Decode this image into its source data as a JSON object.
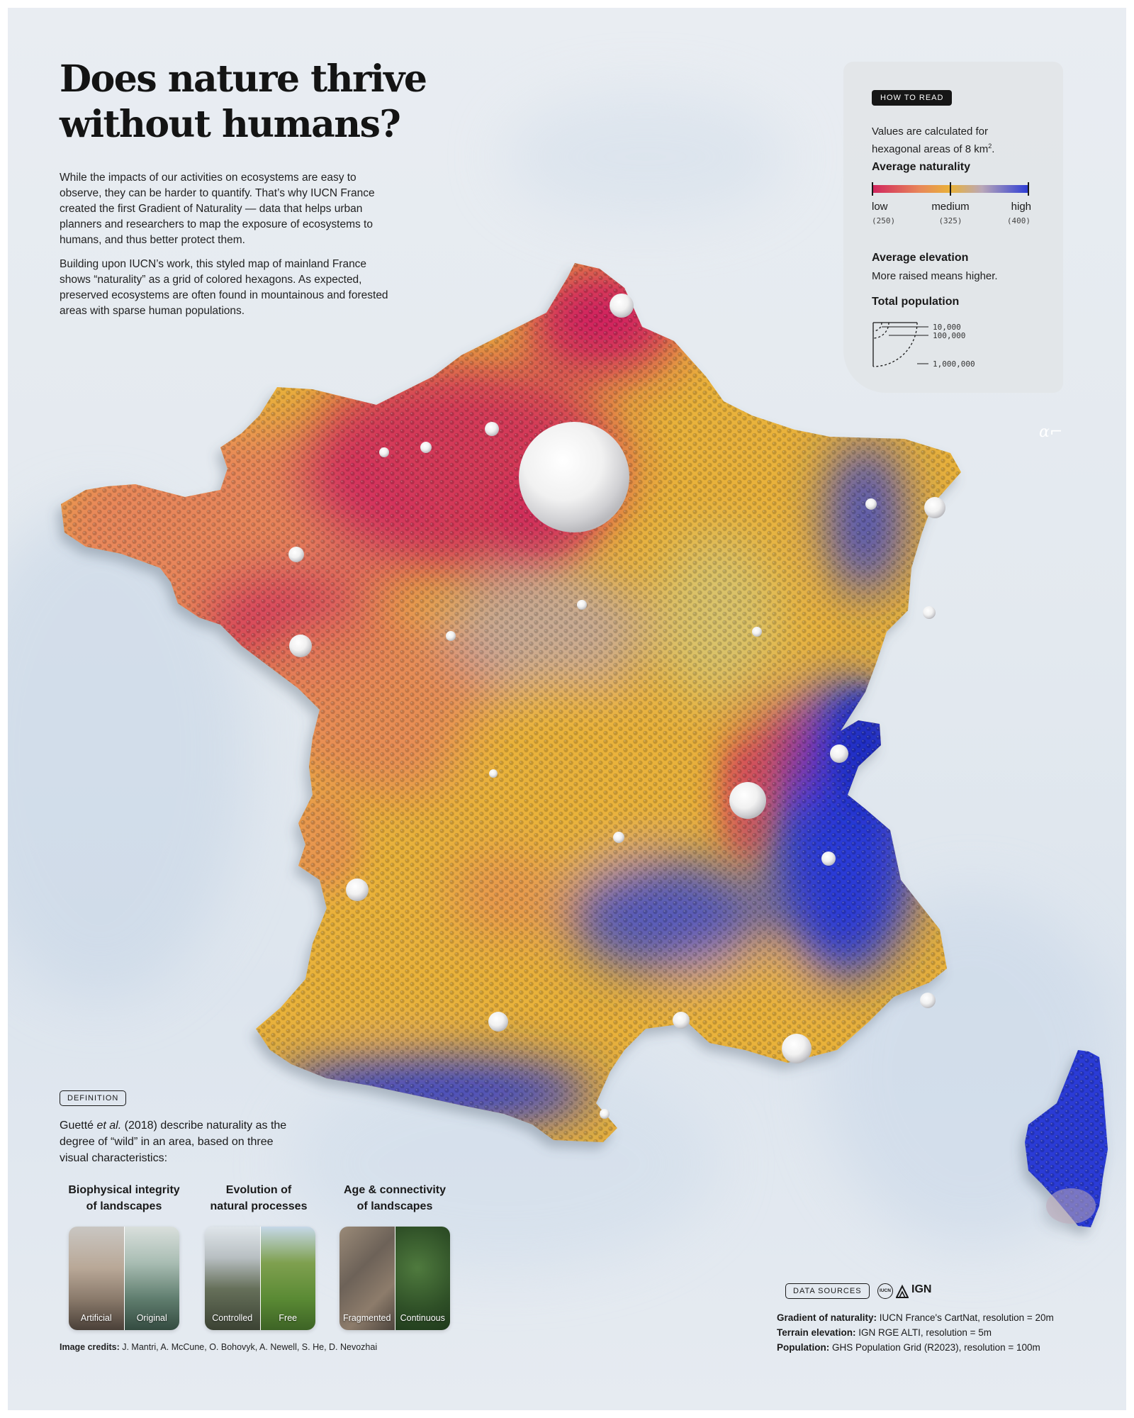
{
  "header": {
    "title": "Does nature thrive without humans?",
    "intro_p1": "While the impacts of our activities on ecosystems are easy to observe, they can be harder to quantify. That’s why IUCN France created the first Gradient of Naturality — data that helps urban planners and researchers to map the exposure of ecosystems to humans, and thus better protect them.",
    "intro_p2": "Building upon IUCN’s work, this styled map of mainland France shows “naturality” as a grid of colored hexagons. As expected, preserved ecosystems are often found in mountainous and forested areas with sparse human populations."
  },
  "how_to_read": {
    "badge": "HOW TO READ",
    "hex_note_prefix": "Values are calculated for",
    "hex_note": "hexagonal areas of 8 km",
    "hex_note_sup": "2",
    "hex_note_end": ".",
    "naturality_title": "Average naturality",
    "low": "low",
    "medium": "medium",
    "high": "high",
    "low_value": "(250)",
    "medium_value": "(325)",
    "high_value": "(400)",
    "elevation_title": "Average elevation",
    "elevation_text": "More raised means higher.",
    "population_title": "Total population",
    "pop_10k": "10,000",
    "pop_100k": "100,000",
    "pop_1m": "1,000,000"
  },
  "definition": {
    "badge": "DEFINITION",
    "text_a": "Guetté ",
    "text_em": "et al.",
    "text_b": " (2018) describe naturality as the degree of “wild” in an area, based on three visual characteristics:",
    "criteria": [
      {
        "title_1": "Biophysical integrity",
        "title_2": "of landscapes",
        "left": "Artificial",
        "right": "Original"
      },
      {
        "title_1": "Evolution of",
        "title_2": "natural processes",
        "left": "Controlled",
        "right": "Free"
      },
      {
        "title_1": "Age & connectivity",
        "title_2": "of landscapes",
        "left": "Fragmented",
        "right": "Continuous"
      }
    ],
    "credits_label": "Image credits:",
    "credits_text": " J. Mantri, A. McCune, O. Bohovyk, A. Newell, S. He, D. Nevozhai"
  },
  "data_sources": {
    "badge": "DATA SOURCES",
    "iucn_logo": "IUCN",
    "ign_logo": "IGN",
    "lines": [
      {
        "label": "Gradient of naturality:",
        "text": " IUCN France's CartNat, resolution = 20m"
      },
      {
        "label": "Terrain elevation:",
        "text": " IGN RGE ALTI, resolution = 5m"
      },
      {
        "label": "Population:",
        "text": " GHS Population Grid (R2023), resolution = 100m"
      }
    ]
  },
  "colors": {
    "low": "#d0245e",
    "low_mid": "#e8865a",
    "medium": "#e9b23a",
    "mid_high": "#b9a7b8",
    "high": "#2b3bd6"
  }
}
